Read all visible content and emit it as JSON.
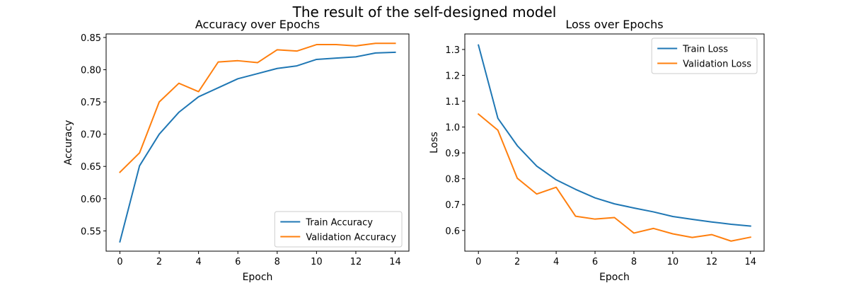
{
  "figure": {
    "title": "The result of the self-designed model"
  },
  "chart_data": [
    {
      "type": "line",
      "title": "Accuracy over Epochs",
      "xlabel": "Epoch",
      "ylabel": "Accuracy",
      "xlim": [
        -0.7,
        14.7
      ],
      "ylim": [
        0.5185,
        0.8555
      ],
      "xticks": [
        0,
        2,
        4,
        6,
        8,
        10,
        12,
        14
      ],
      "yticks": [
        0.55,
        0.6,
        0.65,
        0.7,
        0.75,
        0.8,
        0.85
      ],
      "ytick_decimals": 2,
      "grid": false,
      "legend_position": "lower-right",
      "x": [
        0,
        1,
        2,
        3,
        4,
        5,
        6,
        7,
        8,
        9,
        10,
        11,
        12,
        13,
        14
      ],
      "series": [
        {
          "name": "Train Accuracy",
          "color": "#1f77b4",
          "values": [
            0.533,
            0.651,
            0.7,
            0.734,
            0.758,
            0.772,
            0.786,
            0.794,
            0.802,
            0.806,
            0.816,
            0.818,
            0.82,
            0.826,
            0.827
          ]
        },
        {
          "name": "Validation Accuracy",
          "color": "#ff7f0e",
          "values": [
            0.641,
            0.671,
            0.75,
            0.779,
            0.766,
            0.812,
            0.814,
            0.811,
            0.831,
            0.829,
            0.839,
            0.839,
            0.837,
            0.841,
            0.841
          ]
        }
      ]
    },
    {
      "type": "line",
      "title": "Loss over Epochs",
      "xlabel": "Epoch",
      "ylabel": "Loss",
      "xlim": [
        -0.7,
        14.7
      ],
      "ylim": [
        0.52,
        1.36
      ],
      "xticks": [
        0,
        2,
        4,
        6,
        8,
        10,
        12,
        14
      ],
      "yticks": [
        0.6,
        0.7,
        0.8,
        0.9,
        1.0,
        1.1,
        1.2,
        1.3
      ],
      "ytick_decimals": 1,
      "grid": false,
      "legend_position": "upper-right",
      "x": [
        0,
        1,
        2,
        3,
        4,
        5,
        6,
        7,
        8,
        9,
        10,
        11,
        12,
        13,
        14
      ],
      "series": [
        {
          "name": "Train Loss",
          "color": "#1f77b4",
          "values": [
            1.317,
            1.034,
            0.928,
            0.849,
            0.796,
            0.759,
            0.726,
            0.703,
            0.687,
            0.672,
            0.654,
            0.643,
            0.633,
            0.624,
            0.617
          ]
        },
        {
          "name": "Validation Loss",
          "color": "#ff7f0e",
          "values": [
            1.05,
            0.988,
            0.802,
            0.741,
            0.767,
            0.655,
            0.644,
            0.65,
            0.59,
            0.608,
            0.587,
            0.573,
            0.584,
            0.559,
            0.574
          ]
        }
      ]
    }
  ]
}
